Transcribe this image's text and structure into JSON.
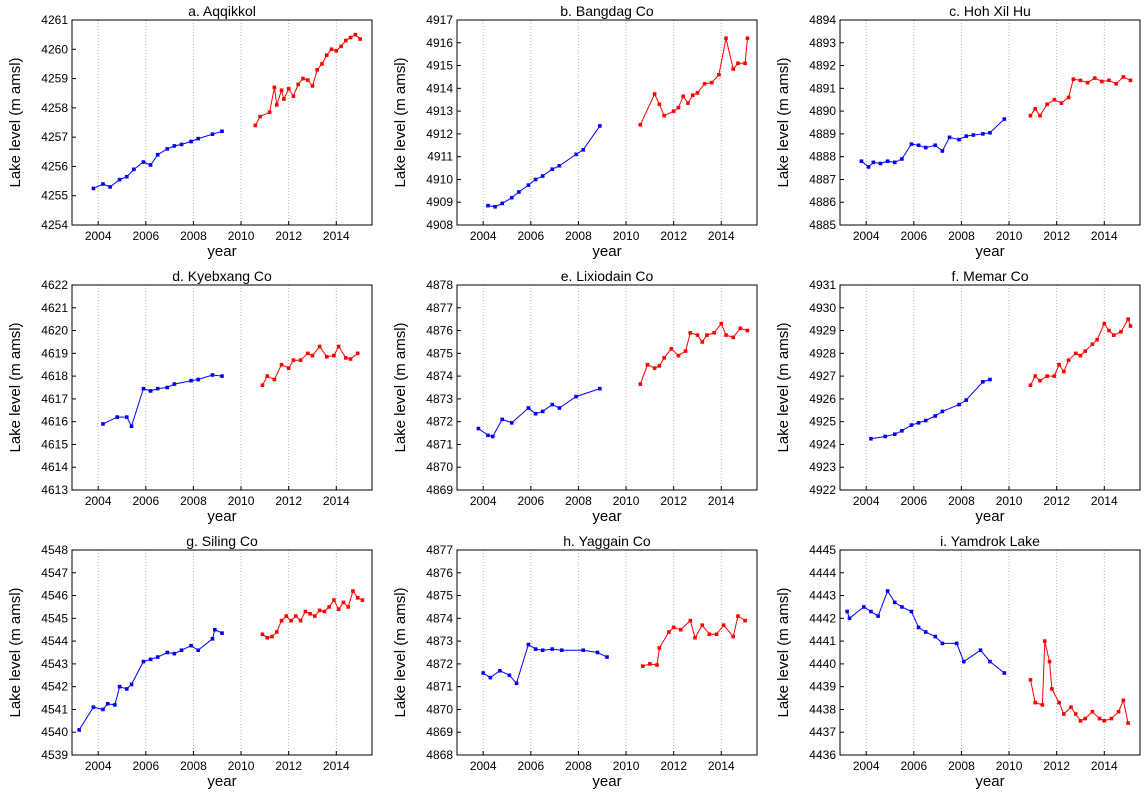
{
  "chart_data": [
    {
      "type": "line",
      "title": "a. Aqqikkol",
      "xlabel": "year",
      "ylabel": "Lake level (m amsl)",
      "xlim": [
        2002.9,
        2015.5
      ],
      "xticks": [
        2004,
        2006,
        2008,
        2010,
        2012,
        2014
      ],
      "ylim": [
        4254,
        4261
      ],
      "yticks": [
        4254,
        4255,
        4256,
        4257,
        4258,
        4259,
        4260,
        4261
      ],
      "grid": "x",
      "series": [
        {
          "color": "#0000ff",
          "x": [
            2003.8,
            2004.2,
            2004.5,
            2004.9,
            2005.2,
            2005.5,
            2005.9,
            2006.2,
            2006.5,
            2006.9,
            2007.2,
            2007.5,
            2007.9,
            2008.2,
            2008.8,
            2009.2
          ],
          "values": [
            4255.25,
            4255.4,
            4255.3,
            4255.55,
            4255.65,
            4255.9,
            4256.15,
            4256.05,
            4256.4,
            4256.6,
            4256.7,
            4256.75,
            4256.85,
            4256.95,
            4257.1,
            4257.2
          ]
        },
        {
          "color": "#ff0000",
          "x": [
            2010.6,
            2010.8,
            2011.2,
            2011.4,
            2011.5,
            2011.7,
            2011.8,
            2012.0,
            2012.2,
            2012.4,
            2012.6,
            2012.8,
            2013.0,
            2013.2,
            2013.4,
            2013.6,
            2013.8,
            2014.0,
            2014.2,
            2014.4,
            2014.6,
            2014.8,
            2015.0
          ],
          "values": [
            4257.4,
            4257.7,
            4257.85,
            4258.7,
            4258.1,
            4258.6,
            4258.3,
            4258.65,
            4258.4,
            4258.8,
            4259.0,
            4258.95,
            4258.75,
            4259.3,
            4259.5,
            4259.8,
            4260.0,
            4259.95,
            4260.1,
            4260.3,
            4260.4,
            4260.5,
            4260.35
          ]
        }
      ]
    },
    {
      "type": "line",
      "title": "b. Bangdag Co",
      "xlabel": "year",
      "ylabel": "Lake level (m amsl)",
      "xlim": [
        2002.9,
        2015.5
      ],
      "xticks": [
        2004,
        2006,
        2008,
        2010,
        2012,
        2014
      ],
      "ylim": [
        4908,
        4917
      ],
      "yticks": [
        4908,
        4909,
        4910,
        4911,
        4912,
        4913,
        4914,
        4915,
        4916,
        4917
      ],
      "grid": "x",
      "series": [
        {
          "color": "#0000ff",
          "x": [
            2004.2,
            2004.5,
            2004.8,
            2005.2,
            2005.5,
            2005.9,
            2006.2,
            2006.5,
            2006.9,
            2007.2,
            2007.9,
            2008.2,
            2008.9
          ],
          "values": [
            4908.85,
            4908.8,
            4908.95,
            4909.2,
            4909.45,
            4909.75,
            4910.0,
            4910.15,
            4910.45,
            4910.6,
            4911.1,
            4911.3,
            4912.35
          ]
        },
        {
          "color": "#ff0000",
          "x": [
            2010.6,
            2011.2,
            2011.4,
            2011.6,
            2012.0,
            2012.2,
            2012.4,
            2012.6,
            2012.8,
            2013.0,
            2013.3,
            2013.6,
            2013.9,
            2014.2,
            2014.5,
            2014.7,
            2015.0,
            2015.1
          ],
          "values": [
            4912.4,
            4913.75,
            4913.3,
            4912.8,
            4913.0,
            4913.15,
            4913.65,
            4913.35,
            4913.7,
            4913.8,
            4914.2,
            4914.25,
            4914.6,
            4916.2,
            4914.85,
            4915.1,
            4915.1,
            4916.2
          ]
        }
      ]
    },
    {
      "type": "line",
      "title": "c. Hoh Xil Hu",
      "xlabel": "year",
      "ylabel": "Lake level (m amsl)",
      "xlim": [
        2002.9,
        2015.5
      ],
      "xticks": [
        2004,
        2006,
        2008,
        2010,
        2012,
        2014
      ],
      "ylim": [
        4885,
        4894
      ],
      "yticks": [
        4885,
        4886,
        4887,
        4888,
        4889,
        4890,
        4891,
        4892,
        4893,
        4894
      ],
      "grid": "x",
      "series": [
        {
          "color": "#0000ff",
          "x": [
            2003.8,
            2004.1,
            2004.3,
            2004.6,
            2004.9,
            2005.2,
            2005.5,
            2005.9,
            2006.2,
            2006.5,
            2006.9,
            2007.2,
            2007.5,
            2007.9,
            2008.2,
            2008.5,
            2008.9,
            2009.2,
            2009.8
          ],
          "values": [
            4887.8,
            4887.55,
            4887.75,
            4887.7,
            4887.8,
            4887.75,
            4887.9,
            4888.55,
            4888.5,
            4888.4,
            4888.5,
            4888.25,
            4888.85,
            4888.75,
            4888.9,
            4888.95,
            4889.0,
            4889.05,
            4889.65
          ]
        },
        {
          "color": "#ff0000",
          "x": [
            2010.9,
            2011.1,
            2011.3,
            2011.6,
            2011.9,
            2012.2,
            2012.5,
            2012.7,
            2013.0,
            2013.3,
            2013.6,
            2013.9,
            2014.2,
            2014.5,
            2014.8,
            2015.1
          ],
          "values": [
            4889.8,
            4890.1,
            4889.8,
            4890.3,
            4890.5,
            4890.35,
            4890.6,
            4891.4,
            4891.35,
            4891.25,
            4891.45,
            4891.3,
            4891.35,
            4891.2,
            4891.5,
            4891.35
          ]
        }
      ]
    },
    {
      "type": "line",
      "title": "d. Kyebxang Co",
      "xlabel": "year",
      "ylabel": "Lake level (m amsl)",
      "xlim": [
        2002.9,
        2015.5
      ],
      "xticks": [
        2004,
        2006,
        2008,
        2010,
        2012,
        2014
      ],
      "ylim": [
        4613,
        4622
      ],
      "yticks": [
        4613,
        4614,
        4615,
        4616,
        4617,
        4618,
        4619,
        4620,
        4621,
        4622
      ],
      "grid": "x",
      "series": [
        {
          "color": "#0000ff",
          "x": [
            2004.2,
            2004.8,
            2005.2,
            2005.4,
            2005.9,
            2006.2,
            2006.5,
            2006.9,
            2007.2,
            2007.9,
            2008.2,
            2008.8,
            2009.2
          ],
          "values": [
            4615.9,
            4616.2,
            4616.2,
            4615.8,
            4617.45,
            4617.35,
            4617.45,
            4617.5,
            4617.65,
            4617.8,
            4617.85,
            4618.05,
            4618.0
          ]
        },
        {
          "color": "#ff0000",
          "x": [
            2010.9,
            2011.1,
            2011.4,
            2011.7,
            2012.0,
            2012.2,
            2012.5,
            2012.8,
            2013.0,
            2013.3,
            2013.6,
            2013.9,
            2014.1,
            2014.4,
            2014.6,
            2014.9
          ],
          "values": [
            4617.6,
            4618.0,
            4617.85,
            4618.5,
            4618.35,
            4618.7,
            4618.7,
            4619.0,
            4618.9,
            4619.3,
            4618.85,
            4618.9,
            4619.3,
            4618.8,
            4618.75,
            4619.0
          ]
        }
      ]
    },
    {
      "type": "line",
      "title": "e. Lixiodain Co",
      "xlabel": "year",
      "ylabel": "Lake level (m amsl)",
      "xlim": [
        2002.9,
        2015.5
      ],
      "xticks": [
        2004,
        2006,
        2008,
        2010,
        2012,
        2014
      ],
      "ylim": [
        4869,
        4878
      ],
      "yticks": [
        4869,
        4870,
        4871,
        4872,
        4873,
        4874,
        4875,
        4876,
        4877,
        4878
      ],
      "grid": "x",
      "series": [
        {
          "color": "#0000ff",
          "x": [
            2003.8,
            2004.2,
            2004.4,
            2004.8,
            2005.2,
            2005.9,
            2006.2,
            2006.5,
            2006.9,
            2007.2,
            2007.9,
            2008.9
          ],
          "values": [
            4871.7,
            4871.4,
            4871.35,
            4872.1,
            4871.95,
            4872.6,
            4872.35,
            4872.45,
            4872.75,
            4872.6,
            4873.1,
            4873.45
          ]
        },
        {
          "color": "#ff0000",
          "x": [
            2010.6,
            2010.9,
            2011.2,
            2011.4,
            2011.6,
            2011.9,
            2012.2,
            2012.5,
            2012.7,
            2013.0,
            2013.2,
            2013.4,
            2013.7,
            2014.0,
            2014.2,
            2014.5,
            2014.8,
            2015.1
          ],
          "values": [
            4873.65,
            4874.5,
            4874.35,
            4874.45,
            4874.8,
            4875.2,
            4874.9,
            4875.1,
            4875.9,
            4875.8,
            4875.5,
            4875.8,
            4875.9,
            4876.3,
            4875.8,
            4875.7,
            4876.1,
            4876.0
          ]
        }
      ]
    },
    {
      "type": "line",
      "title": "f. Memar Co",
      "xlabel": "year",
      "ylabel": "Lake level (m amsl)",
      "xlim": [
        2002.9,
        2015.5
      ],
      "xticks": [
        2004,
        2006,
        2008,
        2010,
        2012,
        2014
      ],
      "ylim": [
        4922,
        4931
      ],
      "yticks": [
        4922,
        4923,
        4924,
        4925,
        4926,
        4927,
        4928,
        4929,
        4930,
        4931
      ],
      "grid": "x",
      "series": [
        {
          "color": "#0000ff",
          "x": [
            2004.2,
            2004.8,
            2005.2,
            2005.5,
            2005.9,
            2006.2,
            2006.5,
            2006.9,
            2007.2,
            2007.9,
            2008.2,
            2008.9,
            2009.2
          ],
          "values": [
            4924.25,
            4924.35,
            4924.45,
            4924.6,
            4924.85,
            4924.95,
            4925.05,
            4925.25,
            4925.45,
            4925.75,
            4925.95,
            4926.75,
            4926.85
          ]
        },
        {
          "color": "#ff0000",
          "x": [
            2010.9,
            2011.1,
            2011.3,
            2011.6,
            2011.9,
            2012.1,
            2012.3,
            2012.5,
            2012.8,
            2013.0,
            2013.2,
            2013.5,
            2013.7,
            2014.0,
            2014.2,
            2014.4,
            2014.7,
            2015.0,
            2015.1
          ],
          "values": [
            4926.6,
            4927.0,
            4926.8,
            4927.0,
            4927.0,
            4927.5,
            4927.2,
            4927.7,
            4928.0,
            4927.9,
            4928.1,
            4928.4,
            4928.6,
            4929.3,
            4929.0,
            4928.8,
            4928.95,
            4929.5,
            4929.2
          ]
        }
      ]
    },
    {
      "type": "line",
      "title": "g. Siling Co",
      "xlabel": "year",
      "ylabel": "Lake level (m amsl)",
      "xlim": [
        2002.9,
        2015.5
      ],
      "xticks": [
        2004,
        2006,
        2008,
        2010,
        2012,
        2014
      ],
      "ylim": [
        4539,
        4548
      ],
      "yticks": [
        4539,
        4540,
        4541,
        4542,
        4543,
        4544,
        4545,
        4546,
        4547,
        4548
      ],
      "grid": "x",
      "series": [
        {
          "color": "#0000ff",
          "x": [
            2003.2,
            2003.8,
            2004.2,
            2004.4,
            2004.7,
            2004.9,
            2005.2,
            2005.4,
            2005.9,
            2006.2,
            2006.5,
            2006.9,
            2007.2,
            2007.5,
            2007.9,
            2008.2,
            2008.8,
            2008.9,
            2009.2
          ],
          "values": [
            4540.1,
            4541.1,
            4541.0,
            4541.25,
            4541.2,
            4542.0,
            4541.9,
            4542.1,
            4543.1,
            4543.2,
            4543.3,
            4543.5,
            4543.45,
            4543.6,
            4543.8,
            4543.6,
            4544.1,
            4544.5,
            4544.35
          ]
        },
        {
          "color": "#ff0000",
          "x": [
            2010.9,
            2011.1,
            2011.3,
            2011.5,
            2011.7,
            2011.9,
            2012.1,
            2012.3,
            2012.5,
            2012.7,
            2012.9,
            2013.1,
            2013.3,
            2013.5,
            2013.7,
            2013.9,
            2014.1,
            2014.3,
            2014.5,
            2014.7,
            2014.9,
            2015.1
          ],
          "values": [
            4544.3,
            4544.15,
            4544.2,
            4544.4,
            4544.9,
            4545.1,
            4544.9,
            4545.1,
            4544.9,
            4545.3,
            4545.2,
            4545.1,
            4545.35,
            4545.3,
            4545.5,
            4545.8,
            4545.4,
            4545.7,
            4545.5,
            4546.2,
            4545.9,
            4545.8
          ]
        }
      ]
    },
    {
      "type": "line",
      "title": "h. Yaggain Co",
      "xlabel": "year",
      "ylabel": "Lake level (m amsl)",
      "xlim": [
        2002.9,
        2015.5
      ],
      "xticks": [
        2004,
        2006,
        2008,
        2010,
        2012,
        2014
      ],
      "ylim": [
        4868,
        4877
      ],
      "yticks": [
        4868,
        4869,
        4870,
        4871,
        4872,
        4873,
        4874,
        4875,
        4876,
        4877
      ],
      "grid": "x",
      "series": [
        {
          "color": "#0000ff",
          "x": [
            2004.0,
            2004.3,
            2004.7,
            2005.1,
            2005.4,
            2005.9,
            2006.2,
            2006.5,
            2006.9,
            2007.3,
            2008.2,
            2008.8,
            2009.2
          ],
          "values": [
            4871.6,
            4871.4,
            4871.7,
            4871.5,
            4871.15,
            4872.85,
            4872.65,
            4872.6,
            4872.65,
            4872.6,
            4872.6,
            4872.5,
            4872.3
          ]
        },
        {
          "color": "#ff0000",
          "x": [
            2010.7,
            2011.0,
            2011.3,
            2011.4,
            2011.8,
            2012.0,
            2012.3,
            2012.7,
            2012.9,
            2013.2,
            2013.5,
            2013.8,
            2014.1,
            2014.5,
            2014.7,
            2015.0
          ],
          "values": [
            4871.9,
            4872.0,
            4871.95,
            4872.7,
            4873.4,
            4873.6,
            4873.5,
            4873.9,
            4873.15,
            4873.7,
            4873.3,
            4873.3,
            4873.7,
            4873.2,
            4874.1,
            4873.9
          ]
        }
      ]
    },
    {
      "type": "line",
      "title": "i. Yamdrok Lake",
      "xlabel": "year",
      "ylabel": "Lake level (m amsl)",
      "xlim": [
        2002.9,
        2015.5
      ],
      "xticks": [
        2004,
        2006,
        2008,
        2010,
        2012,
        2014
      ],
      "ylim": [
        4436,
        4445
      ],
      "yticks": [
        4436,
        4437,
        4438,
        4439,
        4440,
        4441,
        4442,
        4443,
        4444,
        4445
      ],
      "grid": "x",
      "series": [
        {
          "color": "#0000ff",
          "x": [
            2003.2,
            2003.3,
            2003.9,
            2004.2,
            2004.5,
            2004.9,
            2005.2,
            2005.5,
            2005.9,
            2006.2,
            2006.5,
            2006.9,
            2007.2,
            2007.8,
            2008.1,
            2008.8,
            2009.2,
            2009.8
          ],
          "values": [
            4442.3,
            4442.0,
            4442.5,
            4442.3,
            4442.1,
            4443.2,
            4442.7,
            4442.5,
            4442.3,
            4441.6,
            4441.4,
            4441.2,
            4440.9,
            4440.9,
            4440.1,
            4440.6,
            4440.1,
            4439.6
          ]
        },
        {
          "color": "#ff0000",
          "x": [
            2010.9,
            2011.1,
            2011.4,
            2011.5,
            2011.7,
            2011.8,
            2012.1,
            2012.3,
            2012.6,
            2012.8,
            2013.0,
            2013.2,
            2013.5,
            2013.8,
            2014.0,
            2014.3,
            2014.6,
            2014.8,
            2015.0
          ],
          "values": [
            4439.3,
            4438.3,
            4438.2,
            4441.0,
            4440.1,
            4438.9,
            4438.3,
            4437.8,
            4438.1,
            4437.8,
            4437.5,
            4437.6,
            4437.9,
            4437.6,
            4437.5,
            4437.6,
            4437.9,
            4438.4,
            4437.4
          ]
        }
      ]
    }
  ]
}
